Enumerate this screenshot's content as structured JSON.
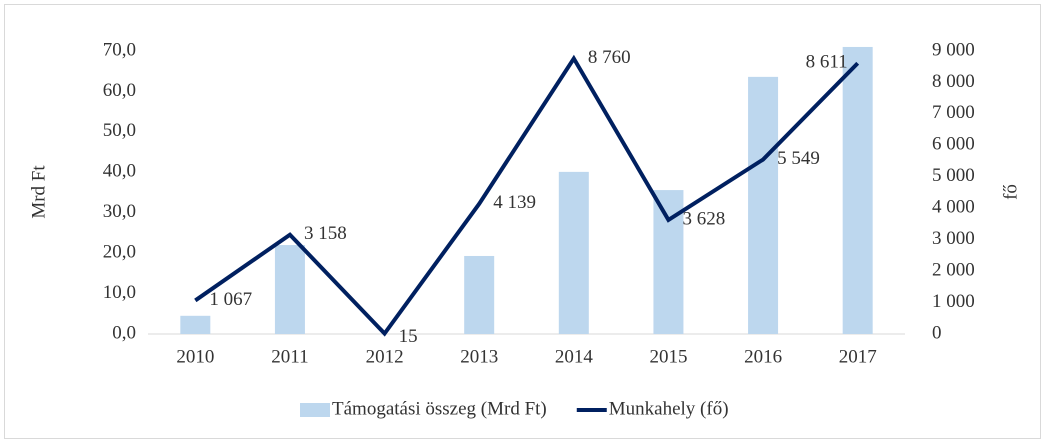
{
  "chart_data": {
    "type": "bar-line",
    "categories": [
      "2010",
      "2011",
      "2012",
      "2013",
      "2014",
      "2015",
      "2016",
      "2017"
    ],
    "series": [
      {
        "name": "Támogatási összeg (Mrd Ft)",
        "type": "bar",
        "color": "#bdd7ee",
        "values": [
          4.5,
          22.0,
          0,
          19.3,
          40.1,
          35.6,
          63.6,
          71.0
        ]
      },
      {
        "name": "Munkahely (fő)",
        "type": "line",
        "axis": "y2",
        "color": "#002060",
        "values": [
          1067,
          3158,
          15,
          4139,
          8760,
          3628,
          5549,
          8611
        ],
        "value_labels": [
          "1 067",
          "3 158",
          "15",
          "4 139",
          "8 760",
          "3 628",
          "5 549",
          "8 611"
        ]
      }
    ],
    "ylabel": "Mrd Ft",
    "y2label": "fő",
    "ylim": [
      0,
      70
    ],
    "yticks": [
      {
        "value": 0,
        "label": "0,0"
      },
      {
        "value": 10,
        "label": "10,0"
      },
      {
        "value": 20,
        "label": "20,0"
      },
      {
        "value": 30,
        "label": "30,0"
      },
      {
        "value": 40,
        "label": "40,0"
      },
      {
        "value": 50,
        "label": "50,0"
      },
      {
        "value": 60,
        "label": "60,0"
      },
      {
        "value": 70,
        "label": "70,0"
      }
    ],
    "y2lim": [
      0,
      9000
    ],
    "y2ticks": [
      0,
      {
        "value": 1000,
        "label": "1 000"
      },
      {
        "value": 2000,
        "label": "2 000"
      },
      {
        "value": 3000,
        "label": "3 000"
      },
      {
        "value": 4000,
        "label": "4 000"
      },
      {
        "value": 5000,
        "label": "5 000"
      },
      {
        "value": 6000,
        "label": "6 000"
      },
      {
        "value": 7000,
        "label": "7 000"
      },
      {
        "value": 8000,
        "label": "8 000"
      },
      {
        "value": 9000,
        "label": "9 000"
      }
    ],
    "grid": false,
    "legend": "bottom"
  }
}
